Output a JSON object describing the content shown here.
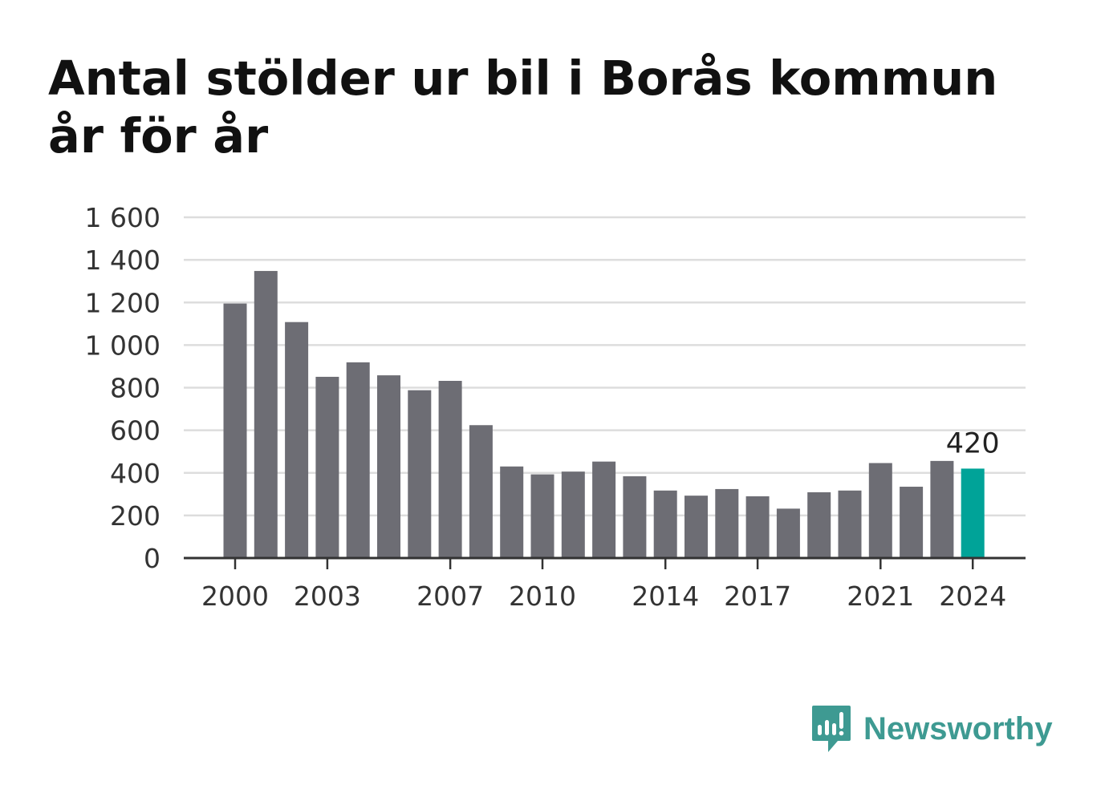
{
  "chart_data": {
    "type": "bar",
    "title": "Antal stölder ur bil i Borås kommun år för år",
    "xlabel": "",
    "ylabel": "",
    "categories": [
      "2000",
      "2001",
      "2002",
      "2003",
      "2004",
      "2005",
      "2006",
      "2007",
      "2008",
      "2009",
      "2010",
      "2011",
      "2012",
      "2013",
      "2014",
      "2015",
      "2016",
      "2017",
      "2018",
      "2019",
      "2020",
      "2021",
      "2022",
      "2023",
      "2024"
    ],
    "values": [
      1195,
      1348,
      1108,
      851,
      919,
      858,
      788,
      832,
      624,
      430,
      393,
      406,
      453,
      384,
      317,
      293,
      324,
      290,
      232,
      309,
      317,
      446,
      335,
      456,
      420
    ],
    "x_tick_labels": [
      "2000",
      "2003",
      "2007",
      "2010",
      "2014",
      "2017",
      "2021",
      "2024"
    ],
    "y_ticks": [
      0,
      200,
      400,
      600,
      800,
      1000,
      1200,
      1400,
      1600
    ],
    "y_tick_labels": [
      "0",
      "200",
      "400",
      "600",
      "800",
      "1 000",
      "1 200",
      "1 400",
      "1 600"
    ],
    "ylim": [
      0,
      1600
    ],
    "grid": true,
    "legend": "none",
    "highlight_category": "2024",
    "highlight_label": "420",
    "colors": {
      "bar": "#6d6d74",
      "highlight": "#00a398",
      "grid": "#dddddd",
      "axis": "#333333"
    }
  },
  "brand": {
    "name": "Newsworthy",
    "logo_icon": "newsworthy-logo-icon",
    "color": "#3e9a92"
  }
}
